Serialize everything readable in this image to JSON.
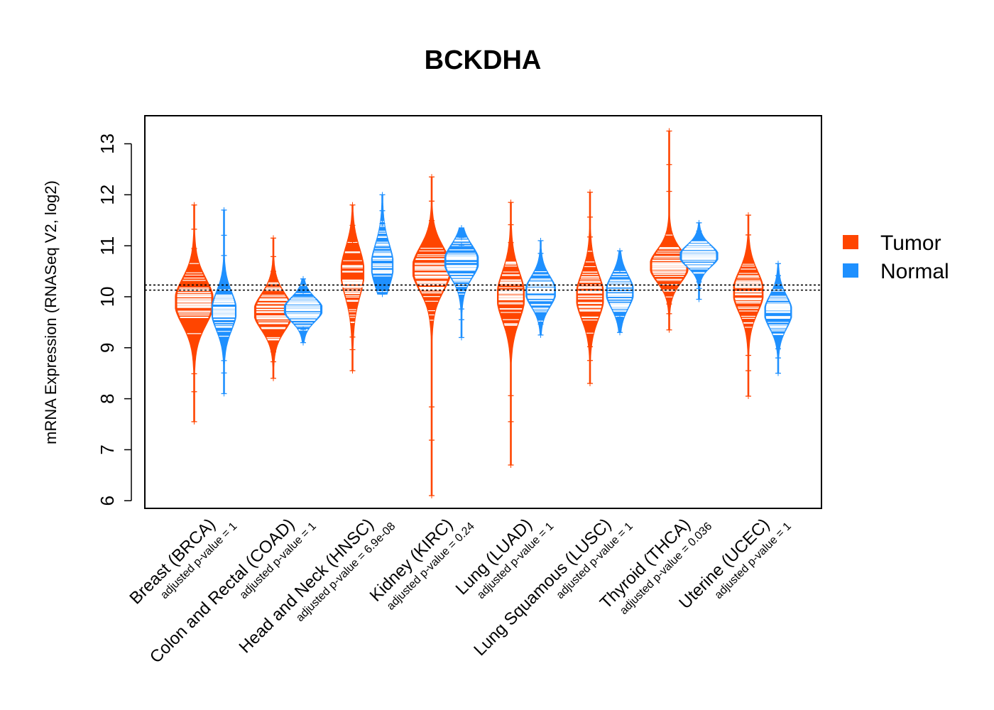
{
  "chart_data": {
    "type": "beanplot",
    "title": "BCKDHA",
    "ylabel": "mRNA Expression (RNASeq V2, log2)",
    "xlabel": "",
    "ylim": [
      5.85,
      13.55
    ],
    "yticks": [
      6,
      7,
      8,
      9,
      10,
      11,
      12,
      13
    ],
    "reference_lines": [
      10.13,
      10.23
    ],
    "legend": [
      {
        "name": "Tumor",
        "color": "#FF4500"
      },
      {
        "name": "Normal",
        "color": "#1E90FF"
      }
    ],
    "groups": [
      {
        "label": "Breast (BRCA)",
        "pvalue": "adjusted p-value = 1",
        "tumor": {
          "min": 7.55,
          "max": 11.8,
          "median": 9.9,
          "mode": 9.9,
          "spread": 0.42,
          "width": 0.28
        },
        "normal": {
          "min": 8.1,
          "max": 11.7,
          "median": 9.72,
          "mode": 9.72,
          "spread": 0.35,
          "width": 0.18
        }
      },
      {
        "label": "Colon and Rectal (COAD)",
        "pvalue": "adjusted p-value = 1",
        "tumor": {
          "min": 8.4,
          "max": 11.15,
          "median": 9.7,
          "mode": 9.7,
          "spread": 0.33,
          "width": 0.28
        },
        "normal": {
          "min": 9.1,
          "max": 10.35,
          "median": 9.75,
          "mode": 9.75,
          "spread": 0.22,
          "width": 0.28
        }
      },
      {
        "label": "Head and Neck (HNSC)",
        "pvalue": "adjusted p-value = 6.9e-08",
        "tumor": {
          "min": 8.55,
          "max": 11.8,
          "median": 10.2,
          "mode": 10.5,
          "spread": 0.45,
          "width": 0.17
        },
        "normal": {
          "min": 10.05,
          "max": 12.0,
          "median": 10.75,
          "mode": 10.6,
          "spread": 0.4,
          "width": 0.16
        }
      },
      {
        "label": "Kidney (KIRC)",
        "pvalue": "adjusted p-value = 0.24",
        "tumor": {
          "min": 6.1,
          "max": 12.35,
          "median": 10.45,
          "mode": 10.55,
          "spread": 0.4,
          "width": 0.28
        },
        "normal": {
          "min": 9.2,
          "max": 11.35,
          "median": 10.6,
          "mode": 10.7,
          "spread": 0.3,
          "width": 0.25
        }
      },
      {
        "label": "Lung (LUAD)",
        "pvalue": "adjusted p-value = 1",
        "tumor": {
          "min": 6.7,
          "max": 11.85,
          "median": 10.1,
          "mode": 10.0,
          "spread": 0.45,
          "width": 0.2
        },
        "normal": {
          "min": 9.25,
          "max": 11.1,
          "median": 10.1,
          "mode": 10.1,
          "spread": 0.28,
          "width": 0.22
        }
      },
      {
        "label": "Lung Squamous (LUSC)",
        "pvalue": "adjusted p-value = 1",
        "tumor": {
          "min": 8.3,
          "max": 12.05,
          "median": 10.1,
          "mode": 10.0,
          "spread": 0.42,
          "width": 0.2
        },
        "normal": {
          "min": 9.3,
          "max": 10.9,
          "median": 10.05,
          "mode": 10.1,
          "spread": 0.3,
          "width": 0.2
        }
      },
      {
        "label": "Thyroid (THCA)",
        "pvalue": "adjusted p-value = 0.036",
        "tumor": {
          "min": 9.35,
          "max": 13.25,
          "median": 10.62,
          "mode": 10.6,
          "spread": 0.3,
          "width": 0.28
        },
        "normal": {
          "min": 9.95,
          "max": 11.45,
          "median": 10.8,
          "mode": 10.8,
          "spread": 0.2,
          "width": 0.28
        }
      },
      {
        "label": "Uterine (UCEC)",
        "pvalue": "adjusted p-value = 1",
        "tumor": {
          "min": 8.05,
          "max": 11.6,
          "median": 10.05,
          "mode": 10.1,
          "spread": 0.38,
          "width": 0.22
        },
        "normal": {
          "min": 8.5,
          "max": 10.65,
          "median": 9.7,
          "mode": 9.7,
          "spread": 0.3,
          "width": 0.2
        }
      }
    ]
  }
}
